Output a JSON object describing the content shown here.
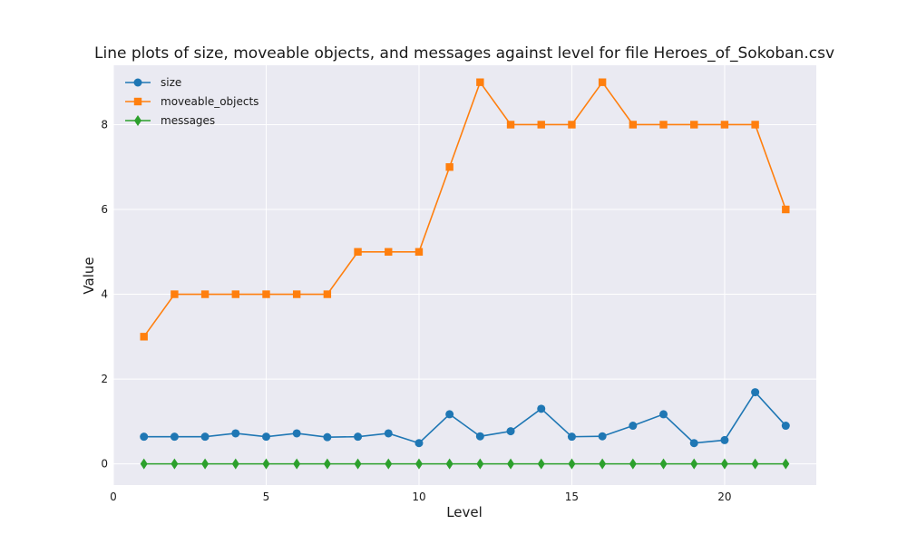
{
  "chart_data": {
    "type": "line",
    "title": "Line plots of size, moveable objects, and messages against level for file Heroes_of_Sokoban.csv",
    "xlabel": "Level",
    "ylabel": "Value",
    "xlim": [
      0,
      23
    ],
    "ylim": [
      -0.5,
      9.4
    ],
    "xticks": [
      0,
      5,
      10,
      15,
      20
    ],
    "yticks": [
      0,
      2,
      4,
      6,
      8
    ],
    "grid": true,
    "legend_position": "top-left",
    "background": "#eaeaf2",
    "x": [
      1,
      2,
      3,
      4,
      5,
      6,
      7,
      8,
      9,
      10,
      11,
      12,
      13,
      14,
      15,
      16,
      17,
      18,
      19,
      20,
      21,
      22
    ],
    "series": [
      {
        "name": "size",
        "color": "#1f77b4",
        "marker": "circle",
        "values": [
          0.64,
          0.64,
          0.64,
          0.72,
          0.64,
          0.72,
          0.63,
          0.64,
          0.72,
          0.49,
          1.17,
          0.65,
          0.77,
          1.3,
          0.64,
          0.65,
          0.9,
          1.17,
          0.49,
          0.56,
          1.69,
          0.9
        ]
      },
      {
        "name": "moveable_objects",
        "color": "#ff7f0e",
        "marker": "square",
        "values": [
          3,
          4,
          4,
          4,
          4,
          4,
          4,
          5,
          5,
          5,
          7,
          9,
          8,
          8,
          8,
          9,
          8,
          8,
          8,
          8,
          8,
          6
        ]
      },
      {
        "name": "messages",
        "color": "#2ca02c",
        "marker": "diamond",
        "values": [
          0,
          0,
          0,
          0,
          0,
          0,
          0,
          0,
          0,
          0,
          0,
          0,
          0,
          0,
          0,
          0,
          0,
          0,
          0,
          0,
          0,
          0
        ]
      }
    ]
  }
}
